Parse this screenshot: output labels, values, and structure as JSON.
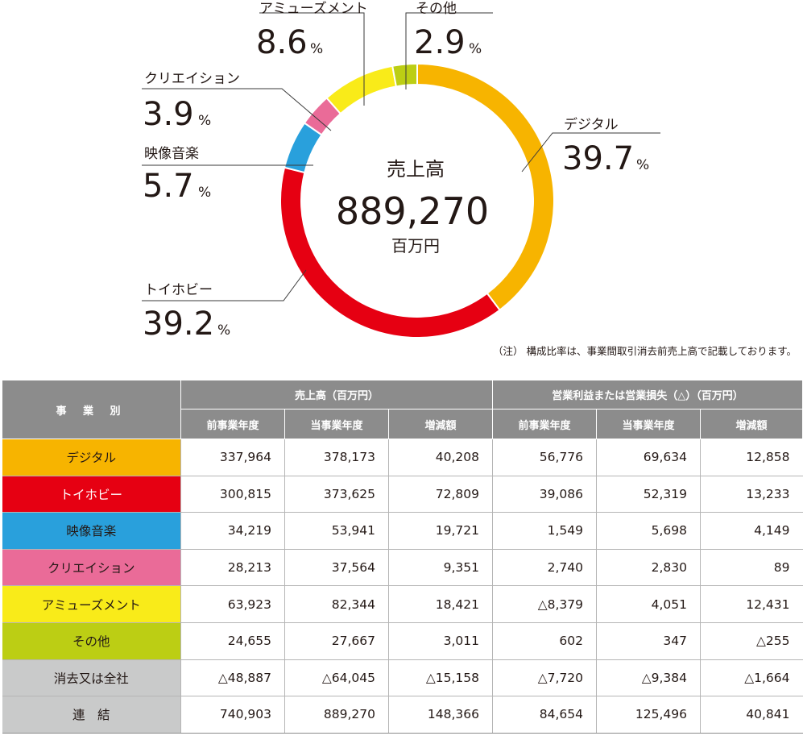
{
  "chart_data": [
    {
      "type": "pie",
      "center": {
        "label": "売上高",
        "value": "889,270",
        "unit": "百万円"
      },
      "slices": [
        {
          "label": "デジタル",
          "value": 39.7,
          "display": "39.7",
          "color": "#F7B400"
        },
        {
          "label": "トイホビー",
          "value": 39.2,
          "display": "39.2",
          "color": "#E60012"
        },
        {
          "label": "映像音楽",
          "value": 5.7,
          "display": "5.7",
          "color": "#29A0DC"
        },
        {
          "label": "クリエイション",
          "value": 3.9,
          "display": "3.9",
          "color": "#EA6B98"
        },
        {
          "label": "アミューズメント",
          "value": 8.6,
          "display": "8.6",
          "color": "#F9EB19"
        },
        {
          "label": "その他",
          "value": 2.9,
          "display": "2.9",
          "color": "#BCCE14"
        }
      ],
      "percent_sign": "%"
    },
    {
      "type": "table",
      "header": {
        "business": "事 業 別",
        "group_sales": "売上高（百万円）",
        "group_profit": "営業利益または営業損失（△）（百万円）",
        "sub_prev": "前事業年度",
        "sub_curr": "当事業年度",
        "sub_diff": "増減額"
      },
      "rows": [
        {
          "name": "デジタル",
          "color": "#F7B400",
          "text_color": "#231815",
          "values": [
            "337,964",
            "378,173",
            "40,208",
            "56,776",
            "69,634",
            "12,858"
          ]
        },
        {
          "name": "トイホビー",
          "color": "#E60012",
          "text_color": "#ffffff",
          "values": [
            "300,815",
            "373,625",
            "72,809",
            "39,086",
            "52,319",
            "13,233"
          ]
        },
        {
          "name": "映像音楽",
          "color": "#29A0DC",
          "text_color": "#231815",
          "values": [
            "34,219",
            "53,941",
            "19,721",
            "1,549",
            "5,698",
            "4,149"
          ]
        },
        {
          "name": "クリエイション",
          "color": "#EA6B98",
          "text_color": "#231815",
          "values": [
            "28,213",
            "37,564",
            "9,351",
            "2,740",
            "2,830",
            "89"
          ]
        },
        {
          "name": "アミューズメント",
          "color": "#F9EB19",
          "text_color": "#231815",
          "values": [
            "63,923",
            "82,344",
            "18,421",
            "△8,379",
            "4,051",
            "12,431"
          ]
        },
        {
          "name": "その他",
          "color": "#BCCE14",
          "text_color": "#231815",
          "values": [
            "24,655",
            "27,667",
            "3,011",
            "602",
            "347",
            "△255"
          ]
        },
        {
          "name": "消去又は全社",
          "color": "#C9CACA",
          "text_color": "#231815",
          "values": [
            "△48,887",
            "△64,045",
            "△15,158",
            "△7,720",
            "△9,384",
            "△1,664"
          ]
        },
        {
          "name": "連　結",
          "color": "#C9CACA",
          "text_color": "#231815",
          "values": [
            "740,903",
            "889,270",
            "148,366",
            "84,654",
            "125,496",
            "40,841"
          ]
        }
      ]
    }
  ],
  "note": "（注） 構成比率は、事業間取引消去前売上高で記載しております。"
}
